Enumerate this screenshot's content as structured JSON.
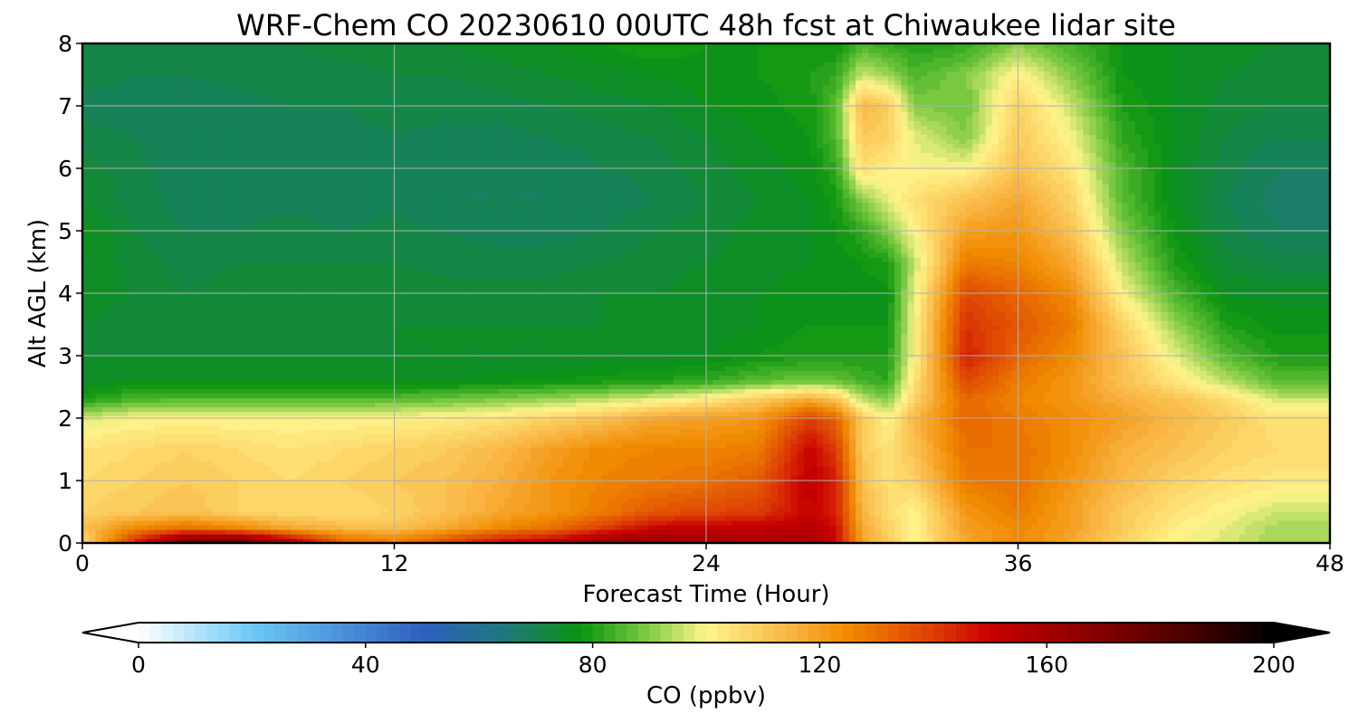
{
  "chart_data": {
    "type": "heatmap",
    "title": "WRF-Chem CO  20230610 00UTC 48h fcst at Chiwaukee lidar site",
    "xlabel": "Forecast Time (Hour)",
    "ylabel": "Alt AGL (km)",
    "xlim": [
      0,
      48
    ],
    "ylim": [
      0,
      8
    ],
    "xticks": [
      0,
      12,
      24,
      36,
      48
    ],
    "yticks": [
      0,
      1,
      2,
      3,
      4,
      5,
      6,
      7,
      8
    ],
    "grid": true,
    "z_units": "ppbv",
    "colorbar": {
      "label": "CO  (ppbv)",
      "min": 0,
      "max": 200,
      "ticks": [
        0,
        40,
        80,
        120,
        160,
        200
      ],
      "extend": "both",
      "orientation": "horizontal",
      "colors": [
        {
          "value": 0,
          "color": "#ffffff"
        },
        {
          "value": 20,
          "color": "#6cc9f5"
        },
        {
          "value": 50,
          "color": "#2f5fc0"
        },
        {
          "value": 65,
          "color": "#1d7a78"
        },
        {
          "value": 78,
          "color": "#0b9410"
        },
        {
          "value": 88,
          "color": "#6cc43a"
        },
        {
          "value": 100,
          "color": "#fff48c"
        },
        {
          "value": 115,
          "color": "#f9b442"
        },
        {
          "value": 125,
          "color": "#f08a00"
        },
        {
          "value": 140,
          "color": "#dd3e05"
        },
        {
          "value": 150,
          "color": "#c80000"
        },
        {
          "value": 185,
          "color": "#4a0000"
        },
        {
          "value": 200,
          "color": "#000000"
        }
      ]
    },
    "x": [
      0,
      2,
      4,
      6,
      8,
      10,
      12,
      14,
      16,
      18,
      20,
      22,
      24,
      26,
      28,
      29,
      30,
      31,
      32,
      34,
      36,
      38,
      40,
      42,
      44,
      46,
      48
    ],
    "y": [
      0,
      0.25,
      0.5,
      1,
      1.5,
      2,
      2.3,
      2.6,
      3,
      3.5,
      4,
      4.5,
      5,
      5.5,
      6,
      6.5,
      7,
      7.5,
      8
    ],
    "z": [
      [
        105,
        145,
        180,
        185,
        160,
        135,
        130,
        140,
        150,
        155,
        165,
        165,
        160,
        158,
        158,
        150,
        120,
        110,
        100,
        118,
        125,
        118,
        108,
        100,
        97,
        92,
        92
      ],
      [
        112,
        125,
        130,
        125,
        118,
        114,
        112,
        118,
        125,
        130,
        140,
        150,
        152,
        152,
        155,
        148,
        118,
        108,
        100,
        120,
        125,
        120,
        110,
        102,
        98,
        93,
        93
      ],
      [
        108,
        110,
        112,
        108,
        106,
        106,
        108,
        112,
        118,
        122,
        128,
        135,
        138,
        140,
        150,
        145,
        115,
        106,
        100,
        122,
        128,
        120,
        110,
        104,
        100,
        96,
        96
      ],
      [
        106,
        108,
        110,
        108,
        106,
        108,
        110,
        112,
        116,
        122,
        126,
        128,
        130,
        134,
        152,
        145,
        112,
        105,
        108,
        128,
        130,
        122,
        114,
        108,
        105,
        103,
        103
      ],
      [
        104,
        106,
        108,
        106,
        104,
        106,
        108,
        110,
        114,
        120,
        125,
        126,
        126,
        128,
        150,
        140,
        110,
        104,
        112,
        130,
        130,
        124,
        116,
        112,
        108,
        106,
        106
      ],
      [
        97,
        100,
        100,
        100,
        100,
        100,
        101,
        102,
        104,
        108,
        112,
        118,
        120,
        122,
        140,
        132,
        110,
        100,
        114,
        132,
        128,
        124,
        120,
        114,
        110,
        104,
        104
      ],
      [
        80,
        85,
        86,
        86,
        86,
        86,
        86,
        88,
        90,
        92,
        95,
        98,
        103,
        110,
        118,
        112,
        95,
        90,
        108,
        132,
        126,
        122,
        116,
        112,
        106,
        96,
        96
      ],
      [
        75,
        76,
        76,
        76,
        76,
        76,
        76,
        76,
        77,
        78,
        79,
        80,
        82,
        86,
        88,
        87,
        84,
        82,
        104,
        138,
        128,
        122,
        112,
        104,
        94,
        86,
        86
      ],
      [
        74,
        74,
        74,
        74,
        74,
        74,
        74,
        74,
        74,
        74,
        75,
        75,
        76,
        78,
        80,
        80,
        80,
        80,
        100,
        145,
        132,
        125,
        112,
        98,
        86,
        80,
        80
      ],
      [
        74,
        73,
        73,
        73,
        73,
        73,
        74,
        74,
        74,
        74,
        74,
        75,
        75,
        76,
        78,
        78,
        78,
        78,
        100,
        142,
        135,
        128,
        108,
        92,
        80,
        77,
        77
      ],
      [
        75,
        74,
        72,
        73,
        73,
        73,
        74,
        73,
        73,
        73,
        74,
        74,
        75,
        76,
        77,
        77,
        77,
        77,
        98,
        138,
        132,
        125,
        100,
        85,
        76,
        75,
        75
      ],
      [
        76,
        73,
        71,
        72,
        72,
        72,
        72,
        71,
        71,
        71,
        72,
        73,
        74,
        75,
        76,
        77,
        78,
        80,
        95,
        128,
        126,
        118,
        95,
        80,
        73,
        71,
        71
      ],
      [
        77,
        72,
        70,
        70,
        71,
        70,
        71,
        70,
        69,
        69,
        70,
        72,
        73,
        75,
        76,
        78,
        82,
        90,
        100,
        120,
        122,
        112,
        90,
        78,
        71,
        68,
        68
      ],
      [
        74,
        71,
        69,
        69,
        69,
        69,
        69,
        68,
        68,
        68,
        68,
        70,
        72,
        74,
        76,
        79,
        90,
        98,
        105,
        112,
        118,
        108,
        86,
        76,
        70,
        67,
        67
      ],
      [
        73,
        71,
        68,
        69,
        69,
        69,
        69,
        68,
        68,
        68,
        70,
        71,
        73,
        75,
        77,
        82,
        105,
        102,
        100,
        100,
        112,
        104,
        85,
        76,
        71,
        68,
        68
      ],
      [
        71,
        70,
        68,
        69,
        69,
        69,
        70,
        69,
        69,
        70,
        71,
        72,
        74,
        76,
        78,
        85,
        110,
        108,
        98,
        90,
        110,
        100,
        82,
        76,
        72,
        70,
        70
      ],
      [
        69,
        69,
        68,
        69,
        70,
        70,
        71,
        71,
        71,
        72,
        73,
        74,
        76,
        77,
        79,
        86,
        114,
        110,
        90,
        88,
        108,
        96,
        80,
        76,
        73,
        72,
        72
      ],
      [
        71,
        70,
        70,
        71,
        71,
        71,
        72,
        72,
        73,
        74,
        75,
        76,
        77,
        78,
        80,
        82,
        96,
        92,
        85,
        90,
        102,
        90,
        78,
        76,
        74,
        73,
        73
      ],
      [
        72,
        72,
        72,
        72,
        72,
        73,
        73,
        74,
        75,
        76,
        78,
        80,
        78,
        78,
        78,
        78,
        84,
        82,
        80,
        82,
        90,
        84,
        78,
        76,
        75,
        74,
        74
      ]
    ]
  }
}
